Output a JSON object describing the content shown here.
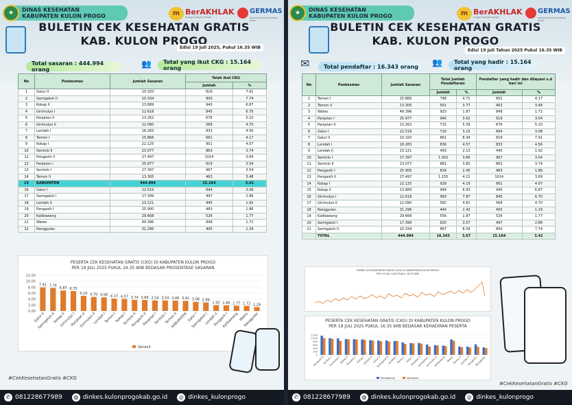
{
  "brand": {
    "org_line1": "DINAS KESEHATAN",
    "org_line2": "KABUPATEN KULON PROGO",
    "berakhlak": "BerAKHLAK",
    "berakhlak_sub": "bangga melayani bangsa",
    "germas": "GERMAS",
    "germas_sub": "Gerakan Masyarakat Hidup Sehat"
  },
  "title_line1": "BULETIN CEK KESEHATAN GRATIS",
  "title_line2": "KAB. KULON PROGO",
  "left": {
    "edisi": "Edisi 19 Juli 2025, Pukul 16.35 WIB",
    "stat1": "Total sasaran : 444.994 orang",
    "stat2": "Total yang ikut CKG : 15.164 orang",
    "headers": {
      "no": "No",
      "puskesmas": "Puskesmas",
      "sasaran": "Jumlah Sasaran",
      "telah": "Telah ikut CKG",
      "jumlah": "Jumlah",
      "pct": "%"
    },
    "rows": [
      [
        "1",
        "Galur II",
        "10.320",
        "816",
        "7.91"
      ],
      [
        "2",
        "Samigaluh II",
        "10.334",
        "800",
        "7.74"
      ],
      [
        "3",
        "Kokap II",
        "13.689",
        "940",
        "6.87"
      ],
      [
        "4",
        "Girimulyo I",
        "12.618",
        "845",
        "6.70"
      ],
      [
        "5",
        "Panjatan II",
        "13.262",
        "676",
        "5.10"
      ],
      [
        "6",
        "Girimulyo II",
        "12.090",
        "568",
        "4.70"
      ],
      [
        "7",
        "Lendah I",
        "18.283",
        "833",
        "4.56"
      ],
      [
        "8",
        "Temon I",
        "15.866",
        "661",
        "4.17"
      ],
      [
        "9",
        "Kokap I",
        "22.125",
        "901",
        "4.07"
      ],
      [
        "10",
        "Sentolo II",
        "23.077",
        "863",
        "3.74"
      ],
      [
        "11",
        "Pengasih II",
        "27.497",
        "1014",
        "3.69"
      ],
      [
        "12",
        "Panjatan I",
        "25.977",
        "919",
        "3.54"
      ],
      [
        "13",
        "Sentolo I",
        "27.397",
        "967",
        "3.54"
      ],
      [
        "14",
        "Temon II",
        "13.305",
        "463",
        "3.48"
      ],
      [
        "15",
        "KABUPATEN",
        "444.994",
        "15.164",
        "3.41"
      ],
      [
        "16",
        "Galur I",
        "22.519",
        "694",
        "3.08"
      ],
      [
        "17",
        "Samigaluh I",
        "17.399",
        "497",
        "2.86"
      ],
      [
        "18",
        "Lendah II",
        "23.121",
        "445",
        "1.92"
      ],
      [
        "19",
        "Pengasih I",
        "25.900",
        "483",
        "1.86"
      ],
      [
        "20",
        "Kalibawang",
        "29.668",
        "526",
        "1.77"
      ],
      [
        "21",
        "Wates",
        "49.396",
        "848",
        "1.72"
      ],
      [
        "22",
        "Nanggulan",
        "31.296",
        "405",
        "1.29"
      ]
    ],
    "chart_title1": "PESERTA CEK KESEHATAN GRATIS (CKG) DI KABUPATEN KULON PROGO",
    "chart_title2": "PER 19 JULI 2025 PUKUL 16.35 WIB BEDASAR PROSENTASE SASARAN",
    "legend": "Series3",
    "hashtag": "#CekKesehatanGratis #CKG"
  },
  "right": {
    "edisi": "Edisi 19 Juli Tahun 2025 Pukul 16.35 WIB",
    "stat1": "Total pendaftar : 16.343 orang",
    "stat2": "Total yang hadir : 15.164 orang",
    "headers": {
      "no": "No",
      "puskesmas": "Puskesmas",
      "sasaran": "Jumlah Sasaran",
      "pendaftar": "Total Jumlah Pendaftaran",
      "hadir": "Pendaftar yang hadir dan dilayani s.d hari ini",
      "jumlah": "Jumlah",
      "pct": "%"
    },
    "rows": [
      [
        "1",
        "Temon I",
        "15.866",
        "748",
        "4.71",
        "661",
        "4.17"
      ],
      [
        "2",
        "Temon II",
        "13.305",
        "501",
        "3.77",
        "463",
        "3.48"
      ],
      [
        "3",
        "Wates",
        "49.396",
        "923",
        "1.87",
        "848",
        "1.72"
      ],
      [
        "4",
        "Panjatan I",
        "25.977",
        "940",
        "3.62",
        "919",
        "3.54"
      ],
      [
        "5",
        "Panjatan II",
        "13.262",
        "715",
        "5.39",
        "676",
        "5.10"
      ],
      [
        "6",
        "Galur I",
        "22.519",
        "710",
        "3.15",
        "694",
        "3.08"
      ],
      [
        "7",
        "Galur II",
        "10.320",
        "861",
        "8.34",
        "816",
        "7.91"
      ],
      [
        "8",
        "Lendah I",
        "18.283",
        "836",
        "4.57",
        "833",
        "4.56"
      ],
      [
        "9",
        "Lendah II",
        "23.121",
        "493",
        "2.13",
        "445",
        "1.92"
      ],
      [
        "10",
        "Sentolo I",
        "27.397",
        "1.002",
        "3.66",
        "967",
        "3.54"
      ],
      [
        "11",
        "Sentolo II",
        "23.077",
        "881",
        "3.82",
        "863",
        "3.74"
      ],
      [
        "12",
        "Pengasih I",
        "25.900",
        "634",
        "2.45",
        "483",
        "1.86"
      ],
      [
        "13",
        "Pengasih II",
        "27.497",
        "1.155",
        "4.21",
        "1014",
        "3.69"
      ],
      [
        "14",
        "Kokap I",
        "22.125",
        "928",
        "4.19",
        "901",
        "4.07"
      ],
      [
        "15",
        "Kokap II",
        "13.689",
        "949",
        "6.93",
        "940",
        "6.87"
      ],
      [
        "16",
        "Girimulyo I",
        "12.618",
        "993",
        "7.87",
        "845",
        "6.70"
      ],
      [
        "17",
        "Girimulyo II",
        "12.090",
        "582",
        "4.81",
        "568",
        "4.70"
      ],
      [
        "18",
        "Nanggulan",
        "31.296",
        "449",
        "1.43",
        "405",
        "1.29"
      ],
      [
        "19",
        "Kalibawang",
        "29.668",
        "556",
        "1.87",
        "526",
        "1.77"
      ],
      [
        "20",
        "Samigaluh I",
        "17.399",
        "620",
        "3.57",
        "497",
        "2.86"
      ],
      [
        "21",
        "Samigaluh II",
        "10.334",
        "867",
        "8.39",
        "800",
        "7.74"
      ],
      [
        "",
        "TOTAL",
        "444.994",
        "16.343",
        "3.67",
        "15.164",
        "3.41"
      ]
    ],
    "trend_title1": "TREND CEK KESEHATAN GRATIS (CKG) DI KABUPATEN KULON PROGO",
    "trend_title2": "PER 19 JULI 2025 PUKUL 16.35 WIB",
    "chart_title1": "PESERTA CEK KESEHATAN GRATIS (CKG) DI KABUPATEN KULON PROGO",
    "chart_title2": "PER 19 JULI 2025 PUKUL 16.35 WIB BEDASAR KEHADIRAN PESERTA",
    "legend_a": "Pendaftaran",
    "legend_b": "Kehadiran",
    "hashtag": "#CekKesehatanGratis #CKG"
  },
  "footer": {
    "phone": "081228677989",
    "web": "dinkes.kulonprogokab.go.id",
    "ig": "dinkes_kulonprogo"
  },
  "chart_data": [
    {
      "type": "bar",
      "title": "PESERTA CEK KESEHATAN GRATIS (CKG) DI KABUPATEN KULON PROGO PER 19 JULI 2025 PUKUL 16.35 WIB BEDASAR PROSENTASE SASARAN",
      "categories": [
        "Galur II",
        "Samigaluh II",
        "Kokap II",
        "Girimulyo I",
        "Panjatan II",
        "Girimulyo II",
        "Lendah I",
        "Temon I",
        "Kokap I",
        "Sentolo II",
        "Pengasih II",
        "Panjatan I",
        "Sentolo I",
        "Temon II",
        "KABUPATEN",
        "Galur I",
        "Samigaluh I",
        "Lendah II",
        "Pengasih I",
        "Kalibawang",
        "Wates",
        "Nanggulan"
      ],
      "series": [
        {
          "name": "Series3",
          "values": [
            7.91,
            7.74,
            6.87,
            6.7,
            5.1,
            4.7,
            4.56,
            4.17,
            4.07,
            3.74,
            3.69,
            3.54,
            3.54,
            3.48,
            3.41,
            3.08,
            2.86,
            1.92,
            1.86,
            1.77,
            1.72,
            1.29
          ]
        }
      ],
      "yticks": [
        "0.00",
        "2.00",
        "4.00",
        "6.00",
        "8.00",
        "10.00",
        "12.00"
      ],
      "ylim": [
        0,
        12
      ],
      "color": "#e07b2c"
    },
    {
      "type": "bar",
      "title": "PESERTA CEK KESEHATAN GRATIS (CKG) DI KABUPATEN KULON PROGO PER 19 JULI 2025 PUKUL 16.35 WIB BEDASAR KEHADIRAN PESERTA",
      "categories": [
        "Pengasih II",
        "Sentolo I",
        "Girimulyo I",
        "Kokap II",
        "Panjatan I",
        "Kokap I",
        "Sentolo II",
        "Galur II",
        "Samigaluh II",
        "Lendah I",
        "Temon I",
        "Galur I",
        "Panjatan II",
        "Samigaluh I",
        "Girimulyo II",
        "Kalibawang",
        "Wates",
        "Temon II",
        "Lendah II",
        "Pengasih I",
        "Nanggulan"
      ],
      "series": [
        {
          "name": "Pendaftaran",
          "values": [
            1155,
            1002,
            993,
            949,
            940,
            928,
            881,
            861,
            867,
            836,
            748,
            710,
            715,
            620,
            582,
            556,
            923,
            501,
            493,
            634,
            449
          ]
        },
        {
          "name": "Kehadiran",
          "values": [
            1014,
            967,
            845,
            940,
            919,
            901,
            863,
            816,
            800,
            833,
            661,
            694,
            676,
            497,
            568,
            526,
            848,
            463,
            445,
            483,
            405
          ]
        }
      ],
      "yticks": [
        "0",
        "200",
        "400",
        "600",
        "800",
        "1,000",
        "1,200"
      ],
      "ylim": [
        0,
        1400
      ],
      "colors": [
        "#3a6fc4",
        "#e07b2c"
      ]
    }
  ],
  "colors": {
    "accent": "#5fcab4",
    "highlight": "#47d3d6",
    "footer": "#141820",
    "bar": "#e07b2c"
  }
}
